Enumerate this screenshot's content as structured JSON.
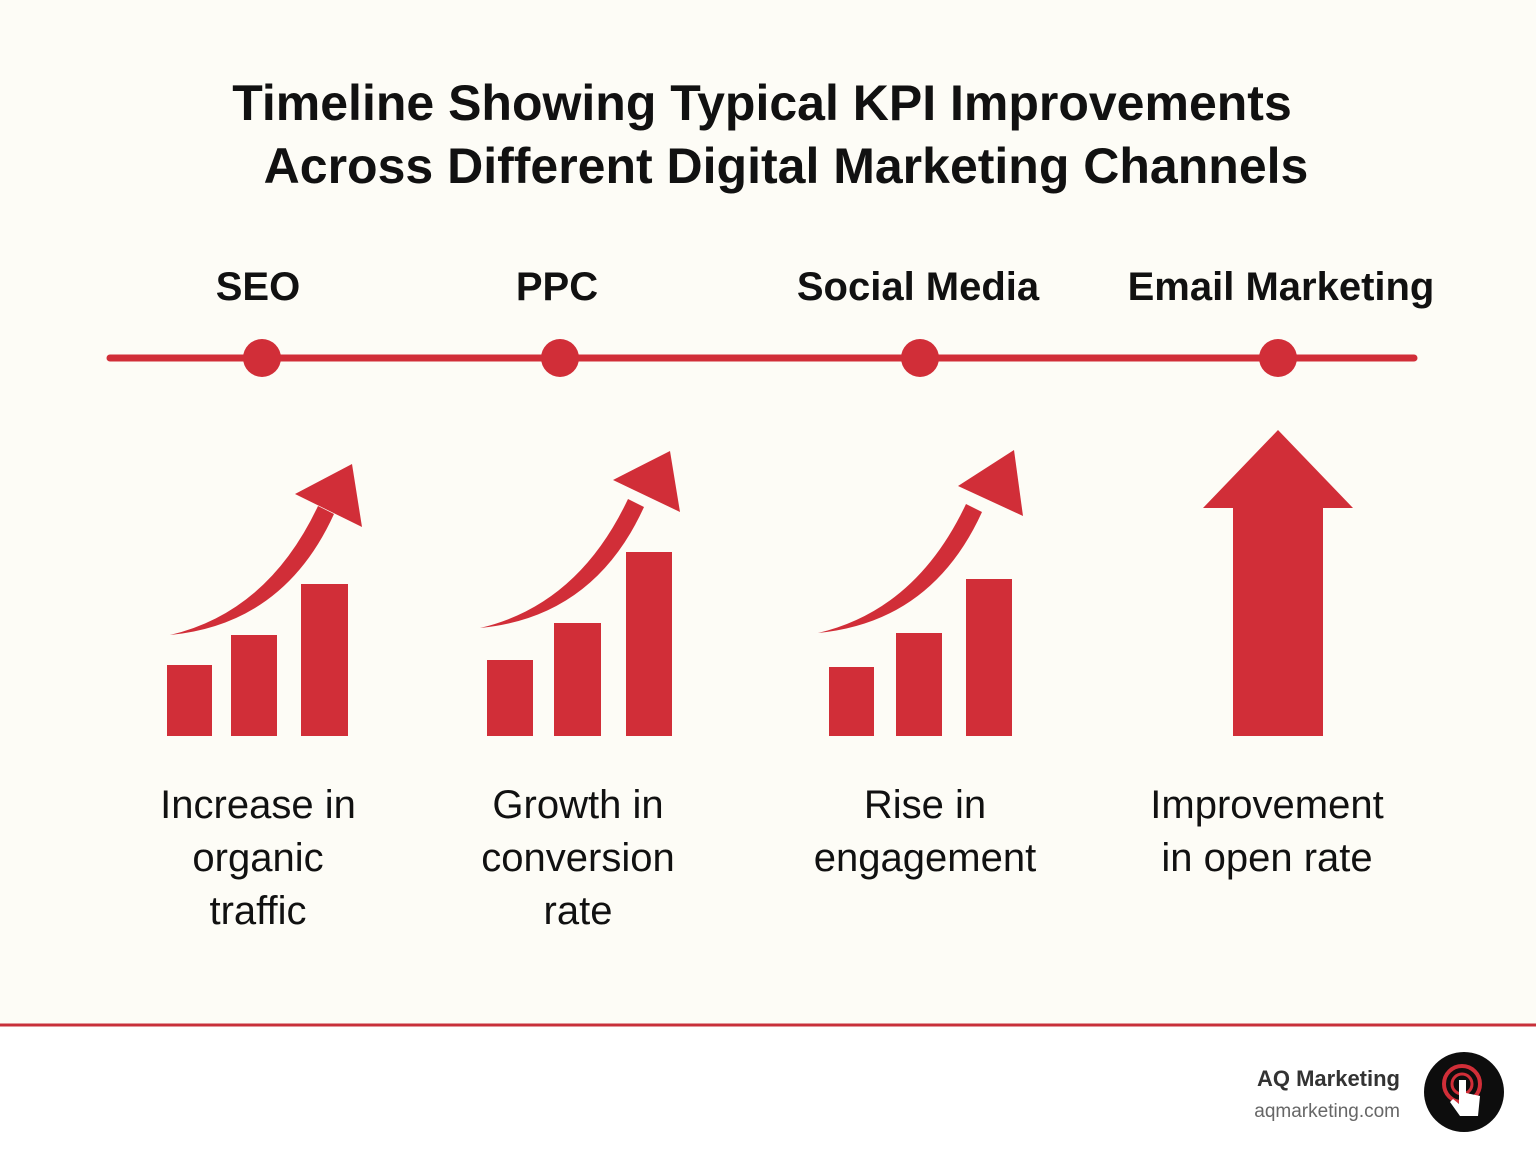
{
  "header": {
    "title": [
      "Timeline Showing Typical KPI Improvements",
      "Across Different Digital Marketing Channels"
    ]
  },
  "channels": [
    {
      "label": "SEO",
      "description": [
        "Increase in",
        "organic",
        "traffic"
      ]
    },
    {
      "label": "PPC",
      "description": [
        "Growth in",
        "conversion",
        "rate"
      ]
    },
    {
      "label": "Social Media",
      "description": [
        "Rise in",
        "engagement"
      ]
    },
    {
      "label": "Email Marketing",
      "description": [
        "Improvement",
        "in open rate"
      ]
    }
  ],
  "footer": {
    "brand": "AQ Marketing",
    "url": "aqmarketing.com"
  }
}
